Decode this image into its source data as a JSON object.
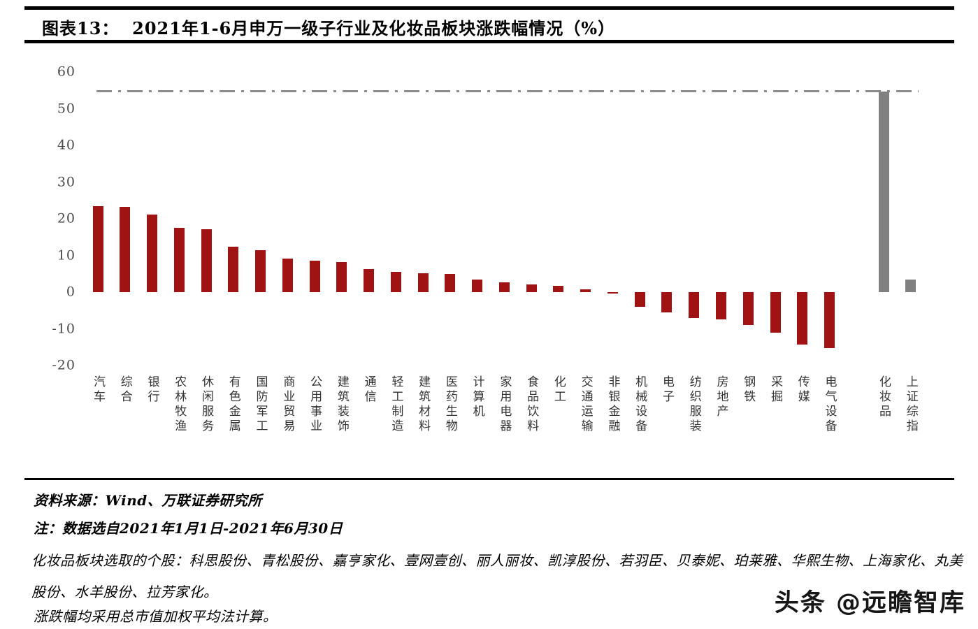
{
  "header": {
    "label": "图表13：",
    "title": "2021年1-6月申万一级子行业及化妆品板块涨跌幅情况（%）"
  },
  "chart_data": {
    "type": "bar",
    "title": "2021年1-6月申万一级子行业及化妆品板块涨跌幅情况（%）",
    "categories": [
      "汽车",
      "综合",
      "银行",
      "农林牧渔",
      "休闲服务",
      "有色金属",
      "国防军工",
      "商业贸易",
      "公用事业",
      "建筑装饰",
      "通信",
      "轻工制造",
      "建筑材料",
      "医药生物",
      "计算机",
      "家用电器",
      "食品饮料",
      "化工",
      "交通运输",
      "非银金融",
      "机械设备",
      "电子",
      "纺织服装",
      "房地产",
      "钢铁",
      "采掘",
      "传媒",
      "电气设备",
      "化妆品",
      "上证综指"
    ],
    "values": [
      23.5,
      23.3,
      21.1,
      17.5,
      17.1,
      12.4,
      11.5,
      9.1,
      8.6,
      8.1,
      6.2,
      5.6,
      5.2,
      5.0,
      3.4,
      2.6,
      2.1,
      1.7,
      0.7,
      -0.4,
      -4.0,
      -5.5,
      -7.0,
      -7.4,
      -8.9,
      -11.1,
      -14.2,
      -15.2,
      54.6,
      3.5
    ],
    "groups": [
      "industry",
      "industry",
      "industry",
      "industry",
      "industry",
      "industry",
      "industry",
      "industry",
      "industry",
      "industry",
      "industry",
      "industry",
      "industry",
      "industry",
      "industry",
      "industry",
      "industry",
      "industry",
      "industry",
      "industry",
      "industry",
      "industry",
      "industry",
      "industry",
      "industry",
      "industry",
      "industry",
      "industry",
      "benchmark",
      "benchmark"
    ],
    "x_slots": [
      0,
      1,
      2,
      3,
      4,
      5,
      6,
      7,
      8,
      9,
      10,
      11,
      12,
      13,
      14,
      15,
      16,
      17,
      18,
      19,
      20,
      21,
      22,
      23,
      24,
      25,
      26,
      27,
      29,
      30
    ],
    "yticks": [
      60,
      50,
      40,
      30,
      20,
      10,
      0,
      -10,
      -20
    ],
    "ylim": [
      -20,
      60
    ],
    "ref_line": 54.6,
    "grid": false,
    "legend": "none",
    "colors": {
      "industry": "#A11212",
      "benchmark": "#808080",
      "ref_line": "#8C8C8C"
    }
  },
  "footer": {
    "source": "资料来源：Wind、万联证券研究所",
    "note1": "注：数据选自2021年1月1日-2021年6月30日",
    "note2": "化妆品板块选取的个股：科思股份、青松股份、嘉亨家化、壹网壹创、丽人丽妆、凯淳股份、若羽臣、贝泰妮、珀莱雅、华熙生物、上海家化、丸美股份、水羊股份、拉芳家化。",
    "note3": "涨跌幅均采用总市值加权平均法计算。"
  },
  "watermark": "头条 @远瞻智库"
}
